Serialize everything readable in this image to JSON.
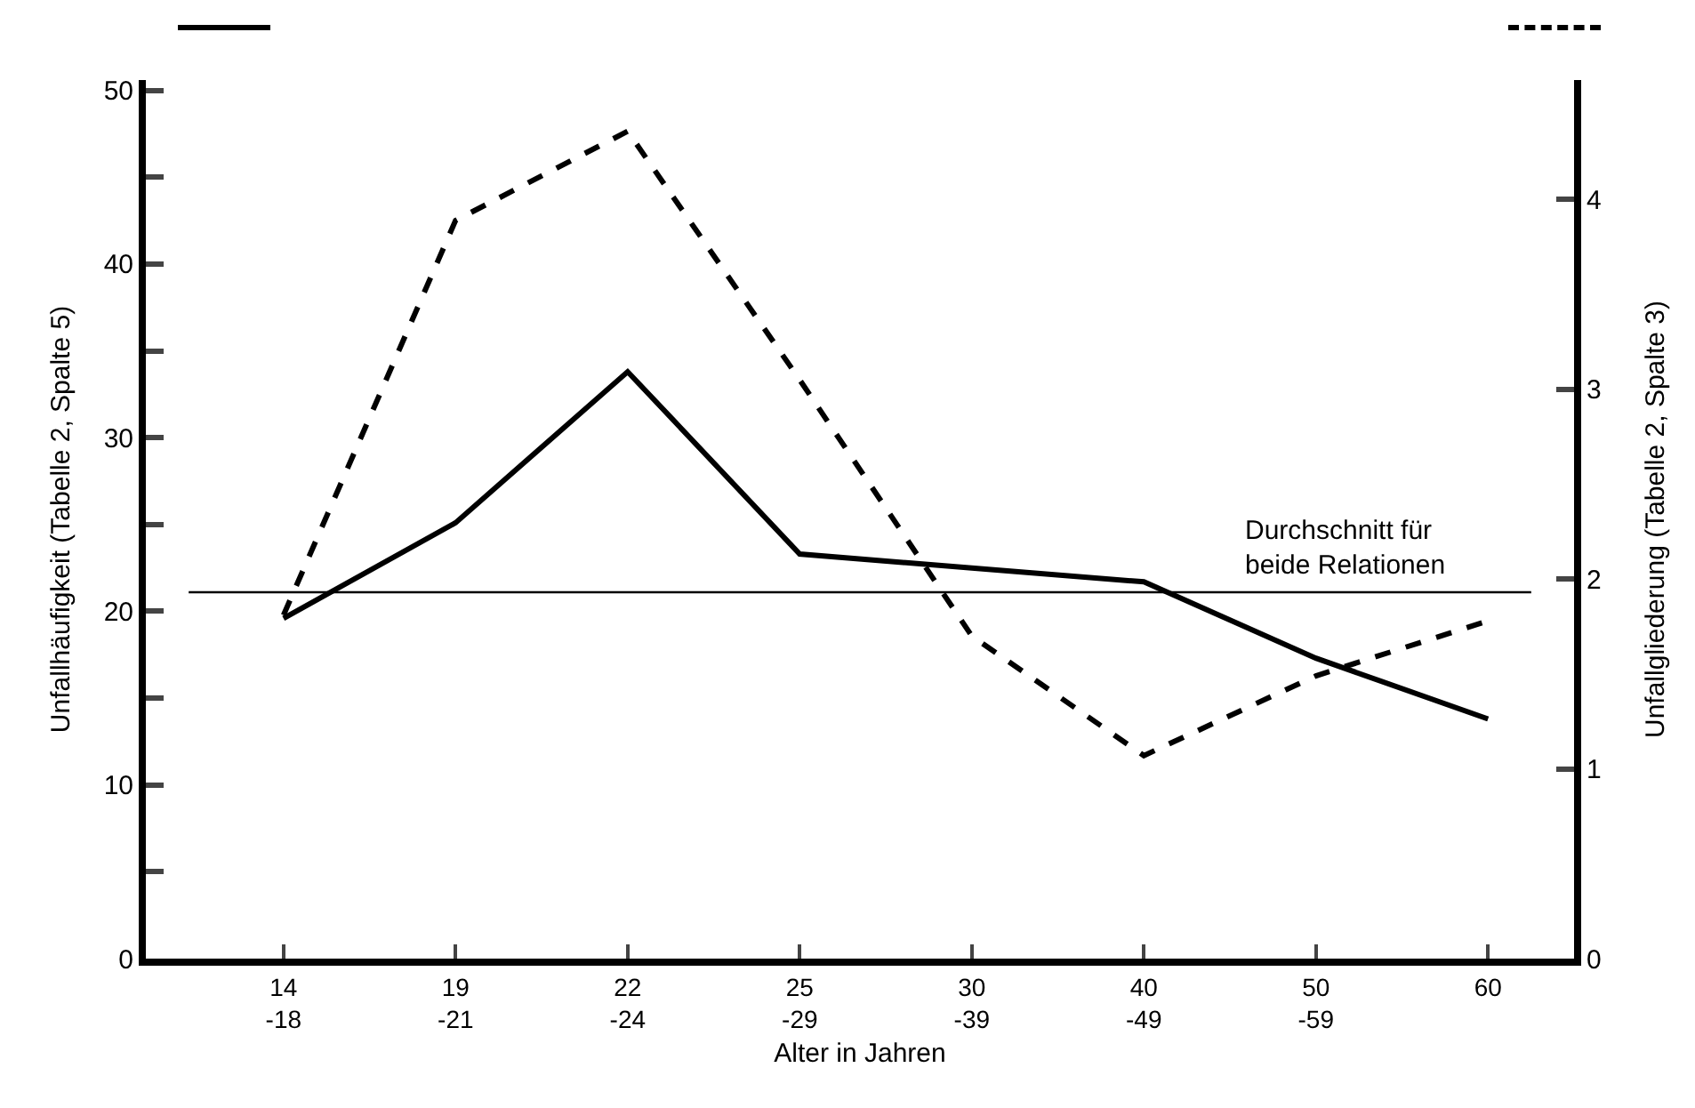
{
  "chart_data": {
    "type": "line",
    "xlabel": "Alter in Jahren",
    "ylabel": "Unfallhäufigkeit (Tabelle 2, Spalte 5)",
    "y2label": "Unfallgliederung (Tabelle 2, Spalte 3)",
    "categories": [
      "14\n-18",
      "19\n-21",
      "22\n-24",
      "25\n-29",
      "30\n-39",
      "40\n-49",
      "50\n-59",
      "60"
    ],
    "series": [
      {
        "color": "#000000",
        "line_style": "solid",
        "values": [
          19.6,
          25.1,
          33.8,
          23.3,
          22.5,
          21.7,
          17.3,
          13.8
        ]
      },
      {
        "color": "#000000",
        "line_style": "dashed",
        "axis": "y2",
        "values": [
          1.81,
          3.89,
          4.36,
          3.05,
          1.7,
          1.07,
          1.49,
          1.78
        ]
      }
    ],
    "ylim": [
      0,
      50.6
    ],
    "yticks": [
      0,
      {
        "value": 5,
        "label": null
      },
      10,
      {
        "value": 15,
        "label": null
      },
      20,
      {
        "value": 25,
        "label": null
      },
      30,
      {
        "value": 35,
        "label": null
      },
      40,
      {
        "value": 45,
        "label": null
      },
      50
    ],
    "y2lim": [
      0,
      4.63
    ],
    "y2ticks": [
      0,
      1,
      2,
      3,
      4
    ],
    "ref_lines": [
      {
        "axis": "y",
        "value": 21.1,
        "label": "Durchschnitt für beide Relationen",
        "color": "#000000"
      }
    ],
    "grid": false,
    "marker": "none"
  }
}
